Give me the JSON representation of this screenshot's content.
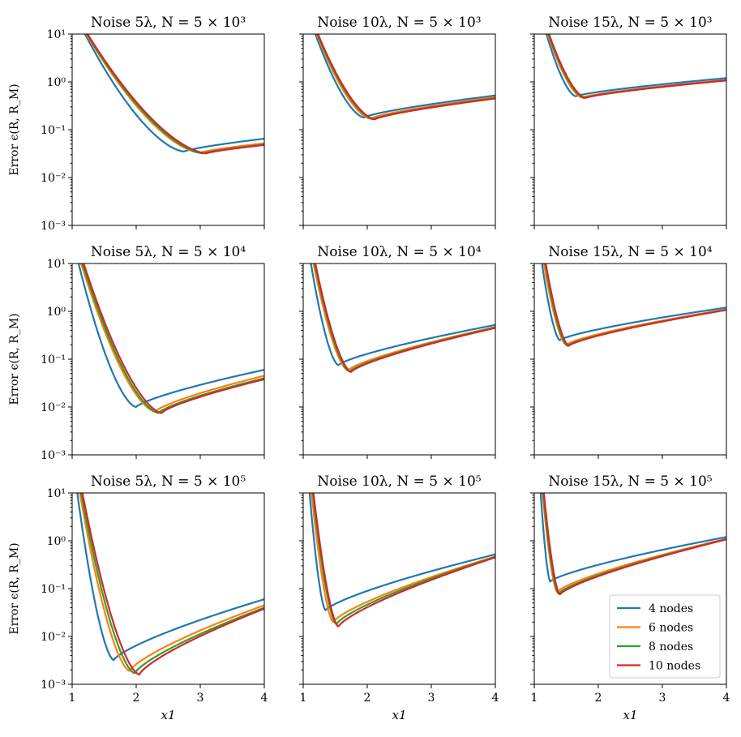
{
  "chart_data": {
    "type": "line",
    "layout_grid": "3x3",
    "shared": {
      "xlabel": "x1",
      "ylabel": "Error ϵ(R, R_M)",
      "xlim": [
        1,
        4
      ],
      "xticks": [
        "1",
        "2",
        "3",
        "4"
      ],
      "yscale": "log",
      "ylim": [
        0.001,
        10
      ],
      "yticks": [
        "10⁻³",
        "10⁻²",
        "10⁻¹",
        "10⁰",
        "10¹"
      ],
      "series_names": [
        "4 nodes",
        "6 nodes",
        "8 nodes",
        "10 nodes"
      ],
      "series_colors": [
        "#1f77b4",
        "#ff7f0e",
        "#2ca02c",
        "#d62728"
      ],
      "legend": {
        "panel": 8,
        "placement": "lower-right"
      }
    },
    "panels": [
      {
        "title": "Noise 5λ, N = 5 × 10³",
        "noise": 5,
        "N_exp": 3,
        "series": [
          {
            "name": "4 nodes",
            "min_x": 2.75,
            "min_y": 0.035,
            "end_y": 0.065,
            "entry_x": 1.2
          },
          {
            "name": "6 nodes",
            "min_x": 3.0,
            "min_y": 0.033,
            "end_y": 0.052,
            "entry_x": 1.22
          },
          {
            "name": "8 nodes",
            "min_x": 3.05,
            "min_y": 0.032,
            "end_y": 0.049,
            "entry_x": 1.23
          },
          {
            "name": "10 nodes",
            "min_x": 3.1,
            "min_y": 0.032,
            "end_y": 0.048,
            "entry_x": 1.24
          }
        ]
      },
      {
        "title": "Noise 10λ, N = 5 × 10³",
        "noise": 10,
        "N_exp": 3,
        "series": [
          {
            "name": "4 nodes",
            "min_x": 1.95,
            "min_y": 0.18,
            "end_y": 0.52,
            "entry_x": 1.19
          },
          {
            "name": "6 nodes",
            "min_x": 2.05,
            "min_y": 0.17,
            "end_y": 0.48,
            "entry_x": 1.21
          },
          {
            "name": "8 nodes",
            "min_x": 2.1,
            "min_y": 0.165,
            "end_y": 0.46,
            "entry_x": 1.22
          },
          {
            "name": "10 nodes",
            "min_x": 2.12,
            "min_y": 0.165,
            "end_y": 0.45,
            "entry_x": 1.23
          }
        ]
      },
      {
        "title": "Noise 15λ, N = 5 × 10³",
        "noise": 15,
        "N_exp": 3,
        "series": [
          {
            "name": "4 nodes",
            "min_x": 1.65,
            "min_y": 0.5,
            "end_y": 1.2,
            "entry_x": 1.19
          },
          {
            "name": "6 nodes",
            "min_x": 1.75,
            "min_y": 0.47,
            "end_y": 1.1,
            "entry_x": 1.21
          },
          {
            "name": "8 nodes",
            "min_x": 1.78,
            "min_y": 0.46,
            "end_y": 1.08,
            "entry_x": 1.22
          },
          {
            "name": "10 nodes",
            "min_x": 1.8,
            "min_y": 0.46,
            "end_y": 1.07,
            "entry_x": 1.23
          }
        ]
      },
      {
        "title": "Noise 5λ, N = 5 × 10⁴",
        "noise": 5,
        "N_exp": 4,
        "series": [
          {
            "name": "4 nodes",
            "min_x": 2.0,
            "min_y": 0.01,
            "end_y": 0.06,
            "entry_x": 1.1
          },
          {
            "name": "6 nodes",
            "min_x": 2.3,
            "min_y": 0.008,
            "end_y": 0.045,
            "entry_x": 1.14
          },
          {
            "name": "8 nodes",
            "min_x": 2.35,
            "min_y": 0.0075,
            "end_y": 0.04,
            "entry_x": 1.16
          },
          {
            "name": "10 nodes",
            "min_x": 2.4,
            "min_y": 0.0075,
            "end_y": 0.038,
            "entry_x": 1.18
          }
        ]
      },
      {
        "title": "Noise 10λ, N = 5 × 10⁴",
        "noise": 10,
        "N_exp": 4,
        "series": [
          {
            "name": "4 nodes",
            "min_x": 1.55,
            "min_y": 0.075,
            "end_y": 0.52,
            "entry_x": 1.12
          },
          {
            "name": "6 nodes",
            "min_x": 1.7,
            "min_y": 0.058,
            "end_y": 0.47,
            "entry_x": 1.16
          },
          {
            "name": "8 nodes",
            "min_x": 1.73,
            "min_y": 0.055,
            "end_y": 0.46,
            "entry_x": 1.18
          },
          {
            "name": "10 nodes",
            "min_x": 1.75,
            "min_y": 0.054,
            "end_y": 0.45,
            "entry_x": 1.19
          }
        ]
      },
      {
        "title": "Noise 15λ, N = 5 × 10⁴",
        "noise": 15,
        "N_exp": 4,
        "series": [
          {
            "name": "4 nodes",
            "min_x": 1.4,
            "min_y": 0.25,
            "end_y": 1.2,
            "entry_x": 1.12
          },
          {
            "name": "6 nodes",
            "min_x": 1.5,
            "min_y": 0.2,
            "end_y": 1.1,
            "entry_x": 1.15
          },
          {
            "name": "8 nodes",
            "min_x": 1.52,
            "min_y": 0.19,
            "end_y": 1.08,
            "entry_x": 1.17
          },
          {
            "name": "10 nodes",
            "min_x": 1.54,
            "min_y": 0.19,
            "end_y": 1.07,
            "entry_x": 1.18
          }
        ]
      },
      {
        "title": "Noise 5λ, N = 5 × 10⁵",
        "noise": 5,
        "N_exp": 5,
        "series": [
          {
            "name": "4 nodes",
            "min_x": 1.65,
            "min_y": 0.0032,
            "end_y": 0.06,
            "entry_x": 1.08
          },
          {
            "name": "6 nodes",
            "min_x": 1.9,
            "min_y": 0.0019,
            "end_y": 0.045,
            "entry_x": 1.12
          },
          {
            "name": "8 nodes",
            "min_x": 1.98,
            "min_y": 0.0017,
            "end_y": 0.04,
            "entry_x": 1.14
          },
          {
            "name": "10 nodes",
            "min_x": 2.05,
            "min_y": 0.0016,
            "end_y": 0.038,
            "entry_x": 1.16
          }
        ]
      },
      {
        "title": "Noise 10λ, N = 5 × 10⁵",
        "noise": 10,
        "N_exp": 5,
        "series": [
          {
            "name": "4 nodes",
            "min_x": 1.35,
            "min_y": 0.035,
            "end_y": 0.52,
            "entry_x": 1.1
          },
          {
            "name": "6 nodes",
            "min_x": 1.47,
            "min_y": 0.02,
            "end_y": 0.47,
            "entry_x": 1.13
          },
          {
            "name": "8 nodes",
            "min_x": 1.52,
            "min_y": 0.018,
            "end_y": 0.46,
            "entry_x": 1.15
          },
          {
            "name": "10 nodes",
            "min_x": 1.55,
            "min_y": 0.016,
            "end_y": 0.45,
            "entry_x": 1.16
          }
        ]
      },
      {
        "title": "Noise 15λ, N = 5 × 10⁵",
        "noise": 15,
        "N_exp": 5,
        "series": [
          {
            "name": "4 nodes",
            "min_x": 1.25,
            "min_y": 0.14,
            "end_y": 1.2,
            "entry_x": 1.1
          },
          {
            "name": "6 nodes",
            "min_x": 1.36,
            "min_y": 0.085,
            "end_y": 1.1,
            "entry_x": 1.13
          },
          {
            "name": "8 nodes",
            "min_x": 1.38,
            "min_y": 0.078,
            "end_y": 1.08,
            "entry_x": 1.14
          },
          {
            "name": "10 nodes",
            "min_x": 1.4,
            "min_y": 0.075,
            "end_y": 1.07,
            "entry_x": 1.15
          }
        ]
      }
    ]
  }
}
